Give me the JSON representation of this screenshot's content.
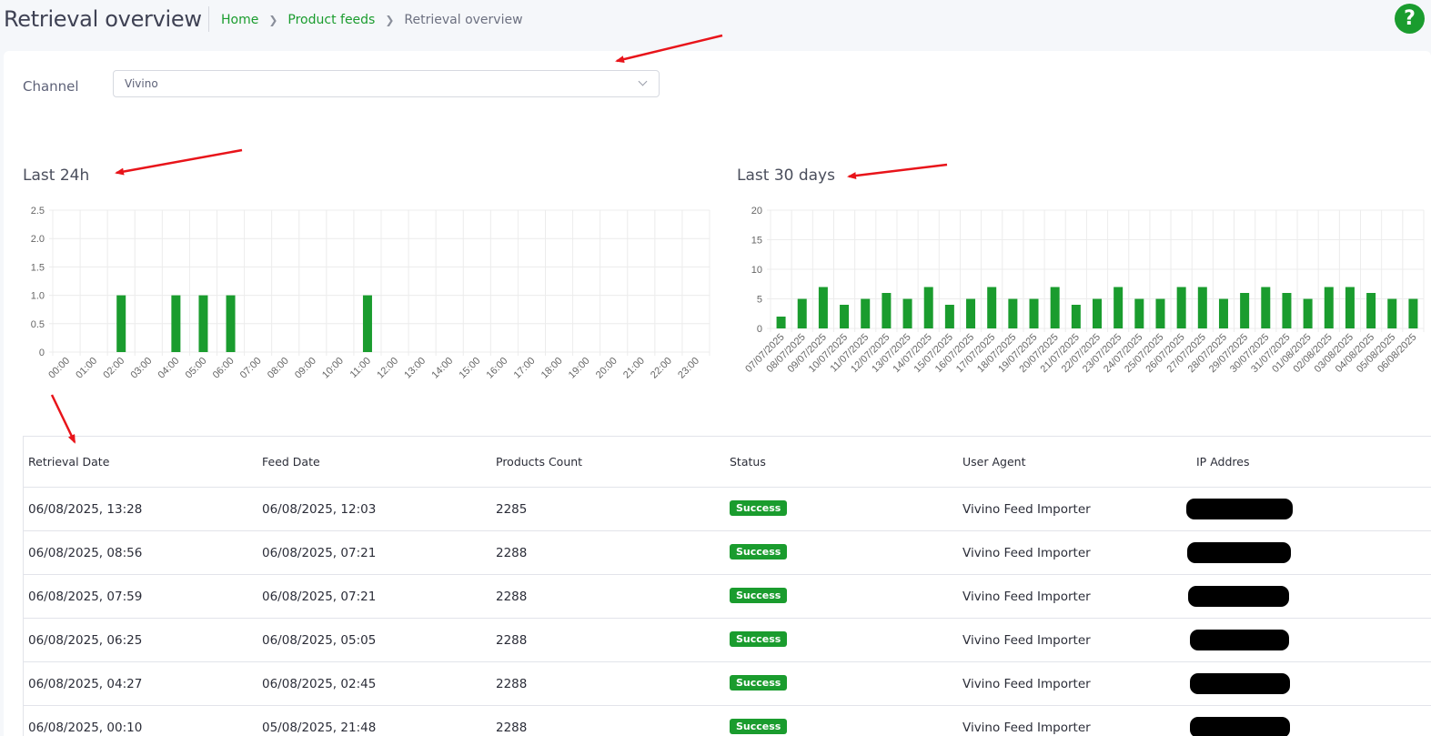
{
  "header": {
    "title": "Retrieval overview",
    "breadcrumb": [
      "Home",
      "Product feeds",
      "Retrieval overview"
    ],
    "help_label": "?"
  },
  "filters": {
    "channel_label": "Channel",
    "channel_value": "Vivino"
  },
  "charts": {
    "left_title": "Last 24h",
    "right_title": "Last 30 days"
  },
  "chart_data": [
    {
      "type": "bar",
      "title": "Last 24h",
      "categories": [
        "00:00",
        "01:00",
        "02:00",
        "03:00",
        "04:00",
        "05:00",
        "06:00",
        "07:00",
        "08:00",
        "09:00",
        "10:00",
        "11:00",
        "12:00",
        "13:00",
        "14:00",
        "15:00",
        "16:00",
        "17:00",
        "18:00",
        "19:00",
        "20:00",
        "21:00",
        "22:00",
        "23:00"
      ],
      "values": [
        0,
        0,
        1,
        0,
        1,
        1,
        1,
        0,
        0,
        0,
        0,
        1,
        0,
        0,
        0,
        0,
        0,
        0,
        0,
        0,
        0,
        0,
        0,
        0
      ],
      "yticks": [
        "0",
        "0.5",
        "1.0",
        "1.5",
        "2.0",
        "2.5"
      ],
      "ylim": [
        0,
        2.5
      ],
      "grid": true,
      "color": "#1a9c2e"
    },
    {
      "type": "bar",
      "title": "Last 30 days",
      "categories": [
        "07/07/2025",
        "08/07/2025",
        "09/07/2025",
        "10/07/2025",
        "11/07/2025",
        "12/07/2025",
        "13/07/2025",
        "14/07/2025",
        "15/07/2025",
        "16/07/2025",
        "17/07/2025",
        "18/07/2025",
        "19/07/2025",
        "20/07/2025",
        "21/07/2025",
        "22/07/2025",
        "23/07/2025",
        "24/07/2025",
        "25/07/2025",
        "26/07/2025",
        "27/07/2025",
        "28/07/2025",
        "29/07/2025",
        "30/07/2025",
        "31/07/2025",
        "01/08/2025",
        "02/08/2025",
        "03/08/2025",
        "04/08/2025",
        "05/08/2025",
        "06/08/2025"
      ],
      "values": [
        2,
        5,
        7,
        4,
        5,
        6,
        5,
        7,
        4,
        5,
        7,
        5,
        5,
        7,
        4,
        5,
        7,
        5,
        5,
        7,
        7,
        5,
        6,
        7,
        6,
        5,
        7,
        7,
        6,
        5,
        5
      ],
      "yticks": [
        "0",
        "5",
        "10",
        "15",
        "20"
      ],
      "ylim": [
        0,
        20
      ],
      "grid": true,
      "color": "#1a9c2e"
    }
  ],
  "table": {
    "columns": [
      "Retrieval Date",
      "Feed Date",
      "Products Count",
      "Status",
      "User Agent",
      "IP Addres"
    ],
    "rows": [
      {
        "retrieval": "06/08/2025, 13:28",
        "feed": "06/08/2025, 12:03",
        "count": "2285",
        "status": "Success",
        "agent": "Vivino Feed Importer"
      },
      {
        "retrieval": "06/08/2025, 08:56",
        "feed": "06/08/2025, 07:21",
        "count": "2288",
        "status": "Success",
        "agent": "Vivino Feed Importer"
      },
      {
        "retrieval": "06/08/2025, 07:59",
        "feed": "06/08/2025, 07:21",
        "count": "2288",
        "status": "Success",
        "agent": "Vivino Feed Importer"
      },
      {
        "retrieval": "06/08/2025, 06:25",
        "feed": "06/08/2025, 05:05",
        "count": "2288",
        "status": "Success",
        "agent": "Vivino Feed Importer"
      },
      {
        "retrieval": "06/08/2025, 04:27",
        "feed": "06/08/2025, 02:45",
        "count": "2288",
        "status": "Success",
        "agent": "Vivino Feed Importer"
      },
      {
        "retrieval": "06/08/2025, 00:10",
        "feed": "05/08/2025, 21:48",
        "count": "2288",
        "status": "Success",
        "agent": "Vivino Feed Importer"
      }
    ]
  },
  "colors": {
    "accent": "#1a9c2e",
    "annotation_arrow": "#e8141a",
    "redaction": "#000000"
  }
}
